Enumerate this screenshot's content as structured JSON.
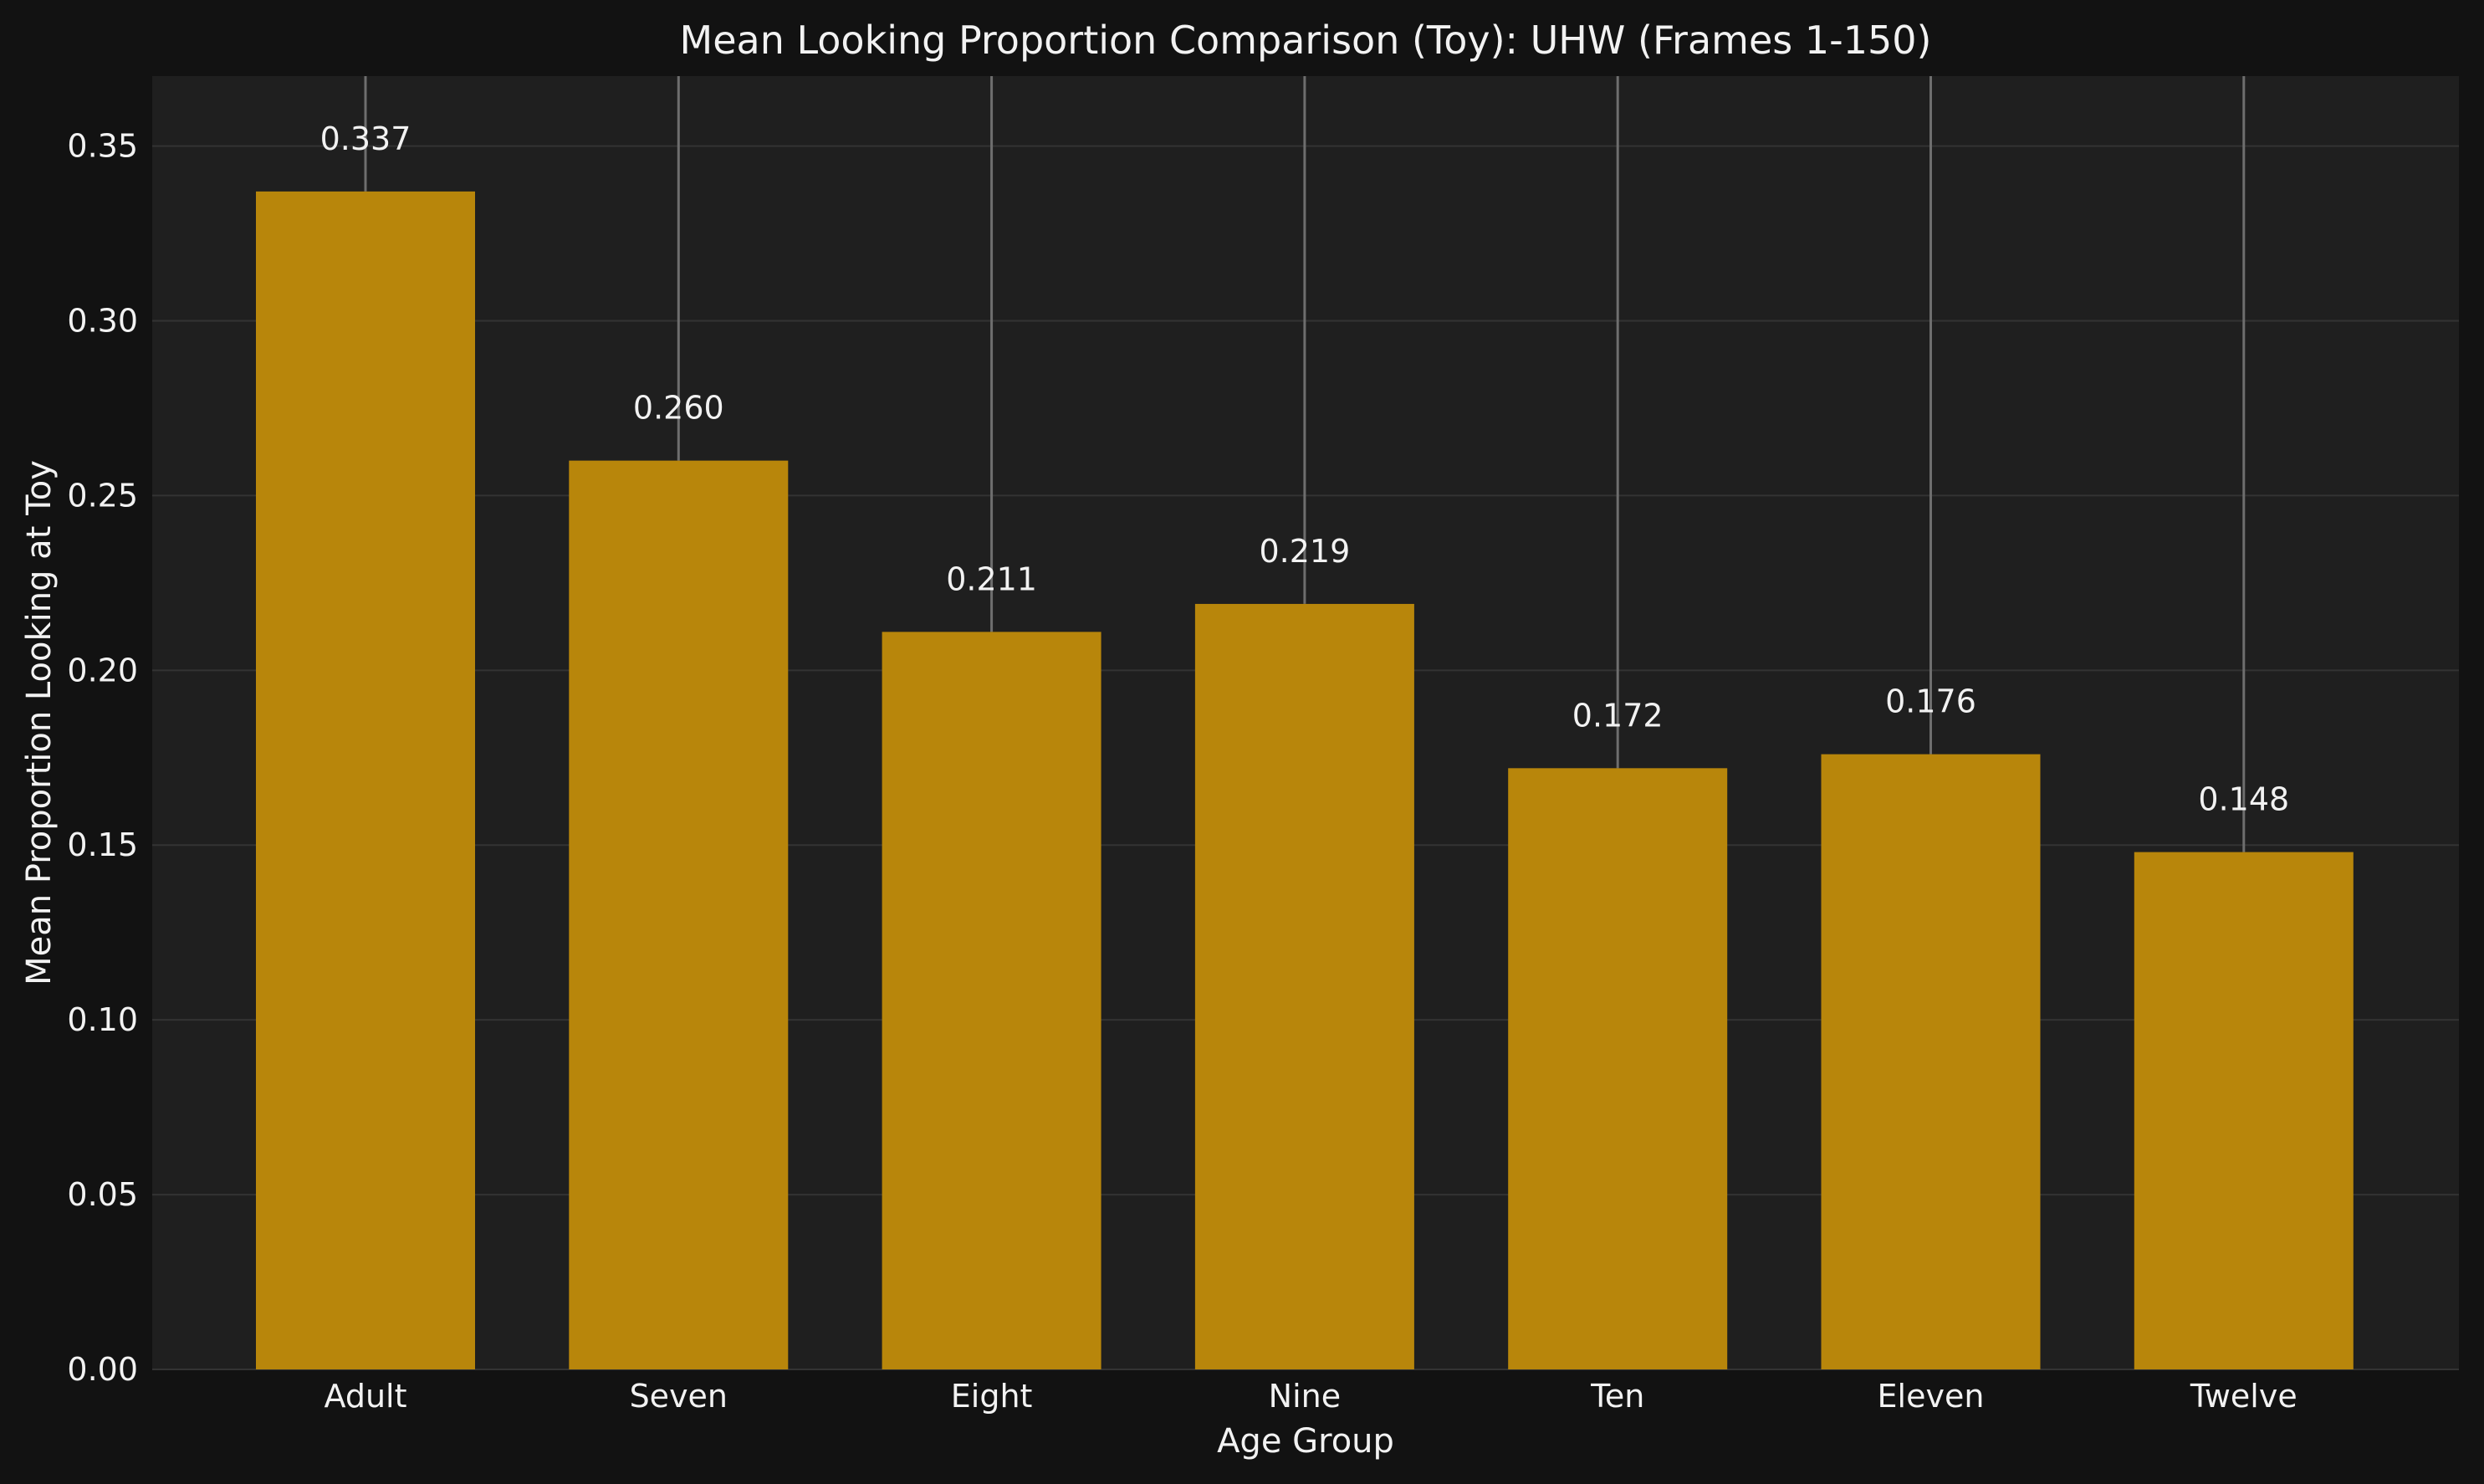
{
  "colors": {
    "figure_background": "#121212",
    "plot_background": "#1f1f1f",
    "bar": "#b8860b",
    "grid": "#333333",
    "error_line": "#6e6e6e",
    "text": "#f2f2f2"
  },
  "chart_data": {
    "type": "bar",
    "title": "Mean Looking Proportion Comparison (Toy): UHW (Frames 1-150)",
    "xlabel": "Age Group",
    "ylabel": "Mean Proportion Looking at Toy",
    "categories": [
      "Adult",
      "Seven",
      "Eight",
      "Nine",
      "Ten",
      "Eleven",
      "Twelve"
    ],
    "values": [
      0.337,
      0.26,
      0.211,
      0.219,
      0.172,
      0.176,
      0.148
    ],
    "value_labels": [
      "0.337",
      "0.260",
      "0.211",
      "0.219",
      "0.172",
      "0.176",
      "0.148"
    ],
    "ylim": [
      0,
      0.37
    ],
    "yticks": [
      0.0,
      0.05,
      0.1,
      0.15,
      0.2,
      0.25,
      0.3,
      0.35
    ],
    "ytick_labels": [
      "0.00",
      "0.05",
      "0.10",
      "0.15",
      "0.20",
      "0.25",
      "0.30",
      "0.35"
    ],
    "grid": true,
    "error_bars": "extend beyond top of axis"
  }
}
